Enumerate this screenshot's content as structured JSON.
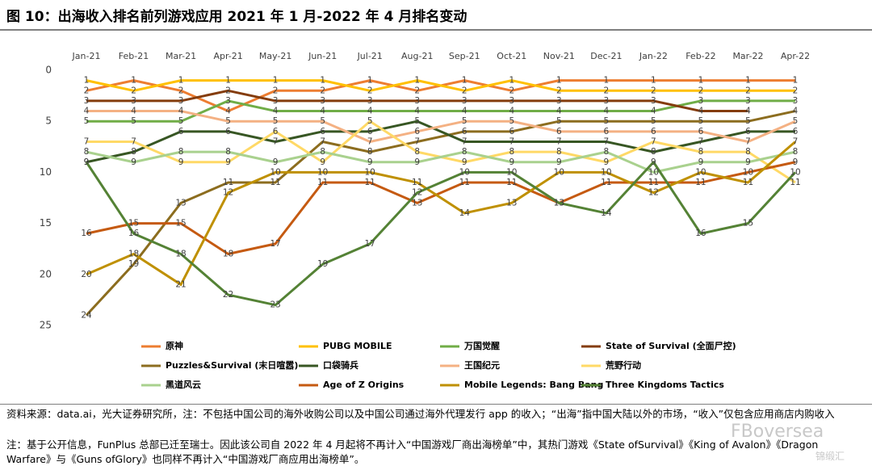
{
  "title": "图 10：出海收入排名前列游戏应用 2021 年 1 月-2022 年 4 月排名变动",
  "chart_data": {
    "type": "line",
    "legend": "bottom",
    "categories": [
      "Jan-21",
      "Feb-21",
      "Mar-21",
      "Apr-21",
      "May-21",
      "Jun-21",
      "Jul-21",
      "Aug-21",
      "Sep-21",
      "Oct-21",
      "Nov-21",
      "Dec-21",
      "Jan-22",
      "Feb-22",
      "Mar-22",
      "Apr-22"
    ],
    "ylim": [
      25,
      0
    ],
    "yticks": [
      0,
      5,
      10,
      15,
      20,
      25
    ],
    "series": [
      {
        "name": "原神",
        "color": "#ed7d31",
        "values": [
          2,
          1,
          2,
          4,
          2,
          2,
          1,
          2,
          1,
          2,
          1,
          1,
          1,
          1,
          1,
          1
        ]
      },
      {
        "name": "PUBG MOBILE",
        "color": "#ffc000",
        "values": [
          1,
          2,
          1,
          1,
          1,
          1,
          2,
          1,
          2,
          1,
          2,
          2,
          2,
          2,
          2,
          2
        ]
      },
      {
        "name": "万国觉醒",
        "color": "#70ad47",
        "values": [
          5,
          5,
          5,
          3,
          4,
          4,
          4,
          4,
          4,
          4,
          4,
          4,
          4,
          3,
          3,
          3
        ]
      },
      {
        "name": "State of Survival (全面尸控)",
        "color": "#843c0c",
        "values": [
          3,
          3,
          3,
          2,
          3,
          3,
          3,
          3,
          3,
          3,
          3,
          3,
          3,
          4,
          4,
          null
        ]
      },
      {
        "name": "Puzzles&Survival (末日喧嚣)",
        "color": "#8c6d1f",
        "values": [
          24,
          19,
          13,
          11,
          11,
          7,
          8,
          7,
          6,
          6,
          5,
          5,
          5,
          5,
          5,
          4
        ]
      },
      {
        "name": "口袋骑兵",
        "color": "#375623",
        "values": [
          9,
          8,
          6,
          6,
          7,
          6,
          6,
          5,
          7,
          7,
          7,
          7,
          8,
          7,
          6,
          6
        ]
      },
      {
        "name": "王国纪元",
        "color": "#f4b183",
        "values": [
          4,
          4,
          4,
          5,
          5,
          5,
          7,
          6,
          5,
          5,
          6,
          6,
          6,
          6,
          7,
          5
        ]
      },
      {
        "name": "荒野行动",
        "color": "#ffd966",
        "values": [
          7,
          7,
          9,
          9,
          6,
          9,
          5,
          8,
          9,
          8,
          8,
          9,
          7,
          8,
          8,
          11
        ]
      },
      {
        "name": "黑道风云",
        "color": "#a9d18e",
        "values": [
          8,
          9,
          8,
          8,
          9,
          8,
          9,
          9,
          8,
          9,
          9,
          8,
          10,
          9,
          9,
          8
        ]
      },
      {
        "name": "Age of Z Origins",
        "color": "#c55a11",
        "values": [
          16,
          15,
          15,
          18,
          17,
          11,
          11,
          13,
          11,
          11,
          13,
          11,
          11,
          11,
          10,
          9
        ]
      },
      {
        "name": "Mobile Legends: Bang Bang",
        "color": "#bf9000",
        "values": [
          20,
          18,
          21,
          12,
          10,
          10,
          10,
          11,
          14,
          13,
          10,
          10,
          12,
          10,
          11,
          7
        ]
      },
      {
        "name": "Three Kingdoms Tactics",
        "color": "#548235",
        "values": [
          9,
          16,
          18,
          22,
          23,
          19,
          17,
          12,
          10,
          10,
          13,
          14,
          9,
          16,
          15,
          10
        ]
      }
    ]
  },
  "footer": {
    "source": "资料来源：data.ai，光大证券研究所，注：不包括中国公司的海外收购公司以及中国公司通过海外代理发行 app 的收入；“出海”指中国大陆以外的市场，“收入”仅包含应用商店内购收入",
    "note": "注：基于公开信息，FunPlus 总部已迁至瑞士。因此该公司自 2022 年 4 月起将不再计入“中国游戏厂商出海榜单”中，其热门游戏《State ofSurvival》《King of Avalon》《Dragon Warfare》与《Guns ofGlory》也同样不再计入“中国游戏厂商应用出海榜单”。"
  },
  "watermark": [
    "FBoversea",
    "锦缎汇"
  ]
}
